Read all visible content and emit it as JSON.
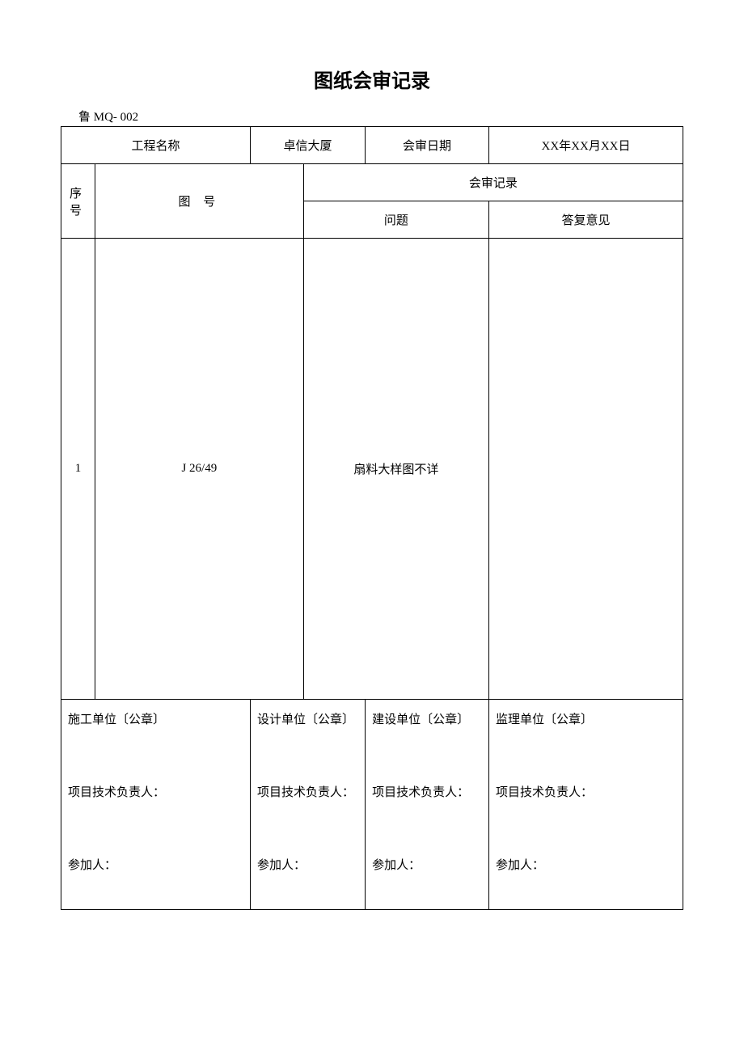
{
  "title": "图纸会审记录",
  "doc_code": "鲁 MQ- 002",
  "header": {
    "project_name_label": "工程名称",
    "project_name_value": "卓信大厦",
    "review_date_label": "会审日期",
    "review_date_value": "XX年XX月XX日"
  },
  "columns": {
    "seq": "序 号",
    "drawing_no": "图 号",
    "review_record": "会审记录",
    "issue": "问题",
    "reply": "答复意见"
  },
  "rows": [
    {
      "seq": "1",
      "drawing_no": "J 26/49",
      "issue": "扇料大样图不详",
      "reply": ""
    }
  ],
  "signatures": {
    "construction": {
      "unit": "施工单位〔公章〕",
      "tech_lead": "项目技术负责人：",
      "participant": "参加人："
    },
    "design": {
      "unit": "设计单位〔公章〕",
      "tech_lead": "项目技术负责人：",
      "participant": "参加人："
    },
    "owner": {
      "unit": "建设单位〔公章〕",
      "tech_lead": "项目技术负责人：",
      "participant": "参加人："
    },
    "supervision": {
      "unit": "监理单位〔公章〕",
      "tech_lead": "项目技术负责人：",
      "participant": "参加人："
    }
  }
}
